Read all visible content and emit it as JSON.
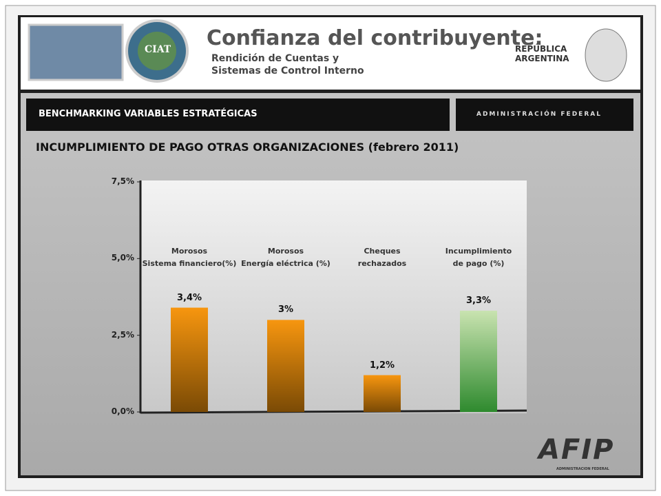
{
  "header": {
    "title": "Confianza del contribuyente:",
    "subtitle": "Rendición de Cuentas y\nSistemas de Control Interno",
    "country": "REPÚBLICA\nARGENTINA",
    "logo_text": "CIAT"
  },
  "banner": {
    "title": "BENCHMARKING VARIABLES ESTRATÉGICAS",
    "brand": "ADMINISTRACIÓN FEDERAL"
  },
  "footer": {
    "logo": "AFIP",
    "logo_sub": "ADMINISTRACION FEDERAL"
  },
  "chart_data": {
    "type": "bar",
    "title": "INCUMPLIMIENTO DE PAGO OTRAS ORGANIZACIONES (febrero 2011)",
    "categories": [
      "Morosos\nSistema financiero(%)",
      "Morosos\nEnergía eléctrica (%)",
      "Cheques\nrechazados",
      "Incumplimiento\nde pago (%)"
    ],
    "values": [
      3.4,
      3,
      1.2,
      3.3
    ],
    "value_labels": [
      "3,4%",
      "3%",
      "1,2%",
      "3,3%"
    ],
    "colors": [
      "#f7960f",
      "#f7960f",
      "#f7960f",
      "#c9e3b0"
    ],
    "ylim": [
      0,
      7.5
    ],
    "yticks": [
      {
        "value": 0,
        "label": "0,0%"
      },
      {
        "value": 2.5,
        "label": "2,5%"
      },
      {
        "value": 5,
        "label": "5,0%"
      },
      {
        "value": 7.5,
        "label": "7,5%"
      }
    ]
  }
}
